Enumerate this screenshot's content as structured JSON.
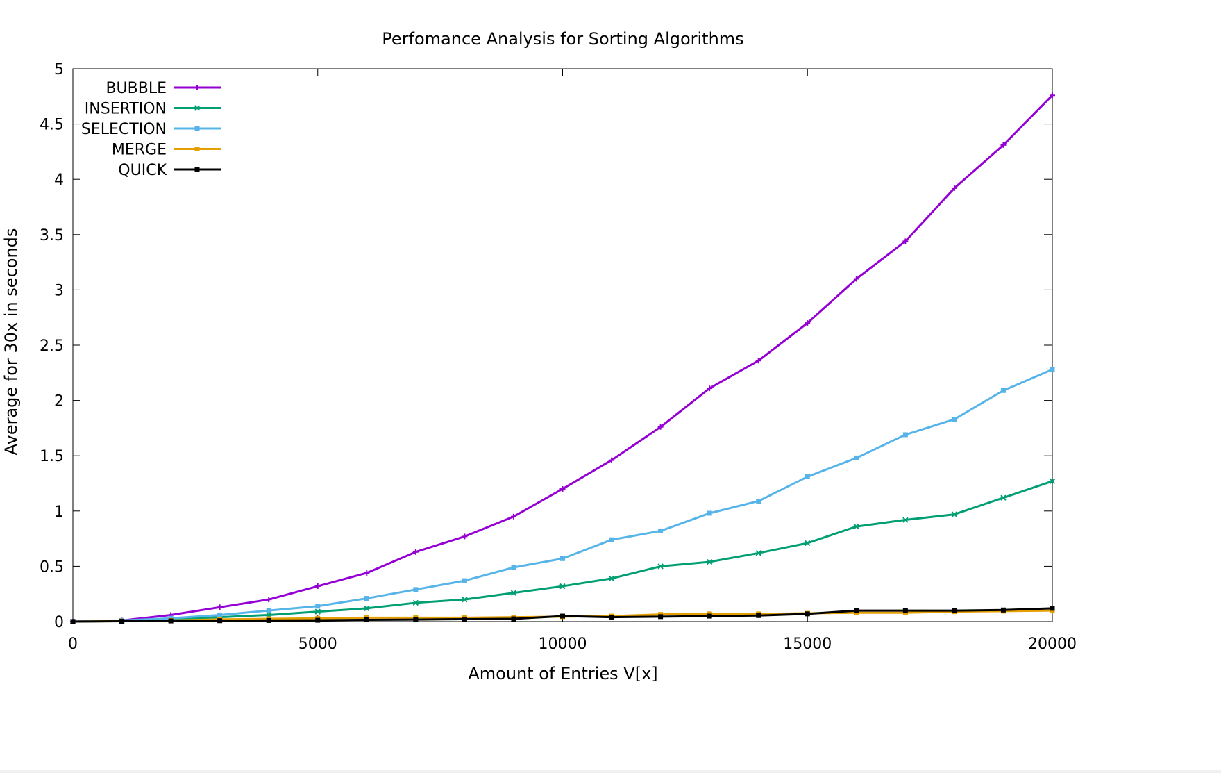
{
  "chart_data": {
    "type": "line",
    "title": "Perfomance Analysis for Sorting Algorithms",
    "xlabel": "Amount of Entries V[x]",
    "ylabel": "Average for 30x in seconds",
    "xlim": [
      0,
      20000
    ],
    "ylim": [
      0,
      5
    ],
    "x_ticks": [
      "0",
      "5000",
      "10000",
      "15000",
      "20000"
    ],
    "y_ticks": [
      "0",
      "0.5",
      "1",
      "1.5",
      "2",
      "2.5",
      "3",
      "3.5",
      "4",
      "4.5",
      "5"
    ],
    "x_tick_values": [
      0,
      5000,
      10000,
      15000,
      20000
    ],
    "y_tick_values": [
      0,
      0.5,
      1,
      1.5,
      2,
      2.5,
      3,
      3.5,
      4,
      4.5,
      5
    ],
    "grid": false,
    "legend_position": "top-left",
    "x": [
      0,
      1000,
      2000,
      3000,
      4000,
      5000,
      6000,
      7000,
      8000,
      9000,
      10000,
      11000,
      12000,
      13000,
      14000,
      15000,
      16000,
      17000,
      18000,
      19000,
      20000
    ],
    "series": [
      {
        "name": "BUBBLE",
        "color": "#9400d3",
        "marker": "plus",
        "values": [
          0,
          0.01,
          0.06,
          0.13,
          0.2,
          0.32,
          0.44,
          0.63,
          0.77,
          0.95,
          1.2,
          1.46,
          1.76,
          2.11,
          2.36,
          2.7,
          3.1,
          3.44,
          3.92,
          4.31,
          4.76
        ]
      },
      {
        "name": "INSERTION",
        "color": "#009e73",
        "marker": "cross",
        "values": [
          0,
          0.005,
          0.02,
          0.04,
          0.06,
          0.09,
          0.12,
          0.17,
          0.2,
          0.26,
          0.32,
          0.39,
          0.5,
          0.54,
          0.62,
          0.71,
          0.86,
          0.92,
          0.97,
          1.12,
          1.27
        ]
      },
      {
        "name": "SELECTION",
        "color": "#56b4e9",
        "marker": "square",
        "values": [
          0,
          0.01,
          0.03,
          0.06,
          0.1,
          0.14,
          0.21,
          0.29,
          0.37,
          0.49,
          0.57,
          0.74,
          0.82,
          0.98,
          1.09,
          1.31,
          1.48,
          1.69,
          1.83,
          2.09,
          2.28
        ]
      },
      {
        "name": "MERGE",
        "color": "#e69f00",
        "marker": "square",
        "values": [
          0,
          0.005,
          0.01,
          0.02,
          0.025,
          0.03,
          0.035,
          0.035,
          0.035,
          0.04,
          0.045,
          0.05,
          0.065,
          0.07,
          0.07,
          0.075,
          0.08,
          0.08,
          0.09,
          0.095,
          0.1
        ]
      },
      {
        "name": "QUICK",
        "color": "#000000",
        "marker": "square",
        "values": [
          0,
          0.003,
          0.006,
          0.008,
          0.01,
          0.012,
          0.016,
          0.018,
          0.022,
          0.025,
          0.05,
          0.04,
          0.045,
          0.05,
          0.055,
          0.07,
          0.1,
          0.1,
          0.1,
          0.105,
          0.12
        ]
      }
    ]
  }
}
